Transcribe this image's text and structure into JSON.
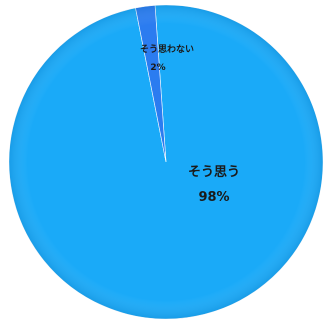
{
  "chart_data": {
    "type": "pie",
    "slices": [
      {
        "label": "そう思う",
        "value": 98,
        "value_label": "98%",
        "color": "#1aaaf8"
      },
      {
        "label": "そう思わない",
        "value": 2,
        "value_label": "2%",
        "color": "#2b7cf0"
      }
    ],
    "title": "",
    "legend": "none",
    "start_angle_deg": -11.2,
    "direction": "clockwise-from-top",
    "data_labels": "inside"
  }
}
